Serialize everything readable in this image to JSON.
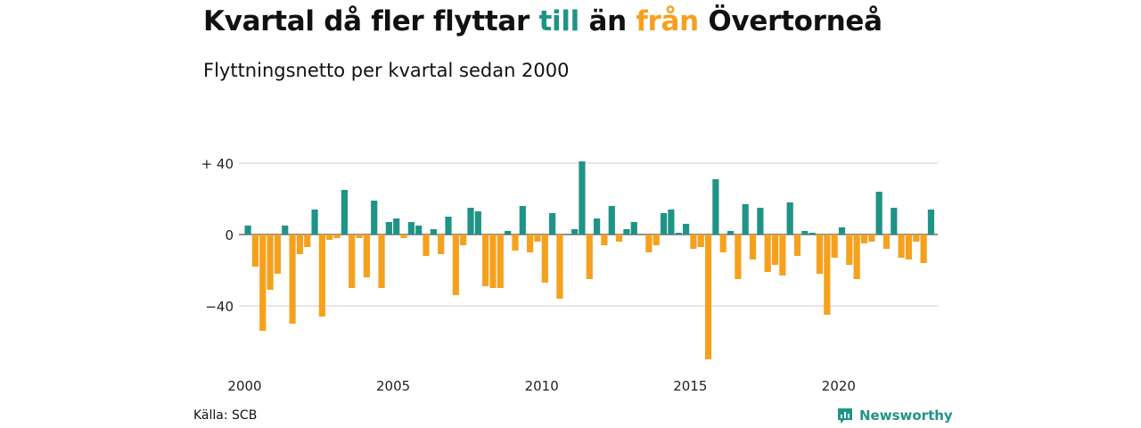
{
  "title": {
    "part1": "Kvartal då fler flyttar ",
    "till": "till",
    "part2": " än ",
    "fran": "från",
    "part3": " Övertorneå"
  },
  "subtitle": "Flyttningsnetto per kvartal sedan 2000",
  "source": "Källa: SCB",
  "brand": "Newsworthy",
  "colors": {
    "positive": "#1f9486",
    "negative": "#f5a11e",
    "grid": "#dddddd"
  },
  "chart_data": {
    "type": "bar",
    "start_year": 2000,
    "start_quarter": 1,
    "ylim": [
      -70,
      45
    ],
    "y_ticks": [
      {
        "value": 40,
        "label": "+ 40"
      },
      {
        "value": 0,
        "label": "0"
      },
      {
        "value": -40,
        "label": "−40"
      }
    ],
    "x_ticks": [
      "2000",
      "2005",
      "2010",
      "2015",
      "2020"
    ],
    "values": [
      5,
      -18,
      -54,
      -31,
      -22,
      5,
      -50,
      -11,
      -7,
      14,
      -46,
      -3,
      -2,
      25,
      -30,
      -2,
      -24,
      19,
      -30,
      7,
      9,
      -2,
      7,
      5,
      -12,
      3,
      -11,
      10,
      -34,
      -6,
      15,
      13,
      -29,
      -30,
      -30,
      2,
      -9,
      16,
      -10,
      -4,
      -27,
      12,
      -36,
      0,
      3,
      41,
      -25,
      9,
      -6,
      16,
      -4,
      3,
      7,
      0,
      -10,
      -6,
      12,
      14,
      1,
      6,
      -8,
      -7,
      -70,
      31,
      -10,
      2,
      -25,
      17,
      -14,
      15,
      -21,
      -17,
      -23,
      18,
      -12,
      2,
      1,
      -22,
      -45,
      -13,
      4,
      -17,
      -25,
      -5,
      -4,
      24,
      -8,
      15,
      -13,
      -14,
      -4,
      -16,
      14
    ]
  }
}
